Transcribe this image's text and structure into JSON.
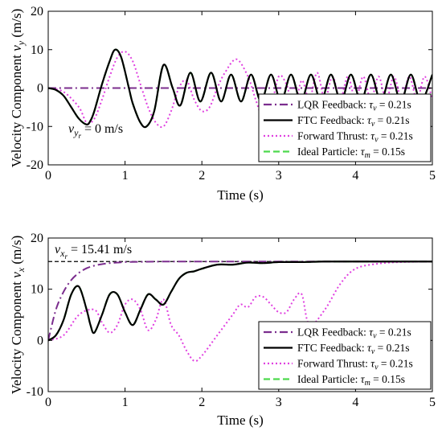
{
  "chart_data": [
    {
      "type": "line",
      "ylabel": "Velocity Component ",
      "ylabel_sym": "v",
      "ylabel_sub": "y",
      "ylabel_unit": " (m/s)",
      "xlabel": "Time (s)",
      "xlim": [
        0,
        5
      ],
      "ylim": [
        -20,
        20
      ],
      "xticks": [
        "0",
        "1",
        "2",
        "3",
        "4",
        "5"
      ],
      "yticks": [
        "20",
        "10",
        "0",
        "-10",
        "-20"
      ],
      "grid": false,
      "legend_position": "bottom-right",
      "annotation": {
        "main": "v",
        "sub": "y",
        "subsub": "r",
        "text": " = 0 m/s"
      },
      "series": [
        {
          "name": "LQR Feedback: ",
          "tau": "τ",
          "tau_sub": "v",
          "tau_val": " = 0.21s",
          "color": "#7b2d8e",
          "style": "dashdot",
          "x": [
            0,
            5
          ],
          "y": [
            0,
            0
          ]
        },
        {
          "name": "FTC Feedback: ",
          "tau": "τ",
          "tau_sub": "v",
          "tau_val": " = 0.21s",
          "color": "#000000",
          "style": "solid",
          "x": [
            0,
            0.1,
            0.2,
            0.3,
            0.4,
            0.5,
            0.55,
            0.6,
            0.7,
            0.8,
            0.87,
            0.95,
            1.05,
            1.1,
            1.2,
            1.28,
            1.38,
            1.5,
            1.62,
            1.72,
            1.85,
            1.98,
            2.12,
            2.25,
            2.38,
            2.51,
            2.64,
            2.77,
            2.9,
            3.03,
            3.16,
            3.29,
            3.42,
            3.55,
            3.68,
            3.81,
            3.94,
            4.07,
            4.2,
            4.33,
            4.46,
            4.59,
            4.72,
            4.85,
            5.0
          ],
          "y": [
            0,
            -0.5,
            -2,
            -5,
            -8,
            -9.5,
            -8.5,
            -6,
            1,
            7,
            10,
            8,
            0,
            -4,
            -9,
            -10,
            -6,
            6,
            0,
            -4.5,
            4,
            -3.5,
            4,
            -3.5,
            3.5,
            -3.5,
            3.5,
            -3.5,
            3.5,
            -3.5,
            3.5,
            -3.5,
            3.5,
            -3.5,
            3.5,
            -3.5,
            3.5,
            -3.5,
            3.5,
            -3.5,
            3.5,
            -3.5,
            3.5,
            -3.5,
            3.5
          ]
        },
        {
          "name": "Forward Thrust: ",
          "tau": "τ",
          "tau_sub": "v",
          "tau_val": " = 0.21s",
          "color": "#e040e0",
          "style": "dotted",
          "x": [
            0,
            0.2,
            0.4,
            0.5,
            0.6,
            0.7,
            0.8,
            0.9,
            1.0,
            1.1,
            1.2,
            1.3,
            1.4,
            1.5,
            1.6,
            1.7,
            1.8,
            1.9,
            2.0,
            2.1,
            2.2,
            2.3,
            2.45,
            2.6,
            2.7,
            2.8,
            2.9,
            3.0,
            3.1,
            3.2,
            3.3,
            3.4,
            3.5,
            3.6,
            3.7,
            3.8,
            3.9,
            4.0,
            4.1,
            4.2,
            4.3,
            4.4,
            4.5,
            4.6,
            4.7,
            4.8,
            4.9,
            5.0
          ],
          "y": [
            0,
            -1,
            -5,
            -9,
            -8,
            -3,
            3,
            8,
            9.5,
            7,
            1,
            -5,
            -9,
            -10,
            -6,
            0,
            2,
            -3,
            -6,
            -5,
            0,
            4,
            7.5,
            3,
            -3,
            -8,
            -5,
            3,
            1,
            -5,
            2,
            -3,
            4,
            -3,
            3,
            -3,
            3,
            -3,
            3,
            -3,
            3,
            -3,
            3,
            -3,
            3,
            -3,
            3,
            -3
          ]
        },
        {
          "name": "Ideal Particle: ",
          "tau": "τ",
          "tau_sub": "m",
          "tau_val": " = 0.15s",
          "color": "#4dd94d",
          "style": "dashed",
          "x": [
            0,
            0.1,
            0.2,
            0.3,
            0.4,
            0.5,
            0.55,
            0.6,
            0.7,
            0.8,
            0.87,
            0.95,
            1.05,
            1.1,
            1.2,
            1.28,
            1.38,
            1.5,
            1.62,
            1.72,
            1.85,
            1.98,
            2.12,
            2.25,
            2.38,
            2.51,
            2.64,
            2.77,
            2.9,
            3.03,
            3.16,
            3.29,
            3.42,
            3.55,
            3.68,
            3.81,
            3.94,
            4.07,
            4.2,
            4.33,
            4.46,
            4.59,
            4.72,
            4.85,
            5.0
          ],
          "y": [
            0,
            -0.5,
            -2,
            -5,
            -8,
            -9.5,
            -8.5,
            -6,
            1,
            7,
            10,
            8,
            0,
            -4,
            -9,
            -10,
            -6,
            6,
            0,
            -4.5,
            4,
            -3.5,
            4,
            -3.5,
            3.5,
            -3.5,
            3.5,
            -3.5,
            3.5,
            -3.5,
            3.5,
            -3.5,
            3.5,
            -3.5,
            3.5,
            -3.5,
            3.5,
            -3.5,
            3.5,
            -3.5,
            3.5,
            -3.5,
            3.5,
            -3.5,
            3.5
          ]
        }
      ]
    },
    {
      "type": "line",
      "ylabel": "Velocity Component ",
      "ylabel_sym": "v",
      "ylabel_sub": "x",
      "ylabel_unit": " (m/s)",
      "xlabel": "Time (s)",
      "xlim": [
        0,
        5
      ],
      "ylim": [
        -10,
        20
      ],
      "xticks": [
        "0",
        "1",
        "2",
        "3",
        "4",
        "5"
      ],
      "yticks": [
        "20",
        "10",
        "0",
        "-10"
      ],
      "grid": false,
      "legend_position": "bottom-right",
      "annotation": {
        "main": "v",
        "sub": "x",
        "subsub": "r",
        "text": " = 15.41 m/s"
      },
      "reference": {
        "value": 15.41,
        "color": "#000000",
        "style": "dashed"
      },
      "series": [
        {
          "name": "LQR Feedback: ",
          "tau": "τ",
          "tau_sub": "v",
          "tau_val": " = 0.21s",
          "color": "#7b2d8e",
          "style": "dashdot",
          "x": [
            0,
            0.1,
            0.2,
            0.3,
            0.4,
            0.5,
            0.6,
            0.7,
            0.8,
            0.9,
            1.0,
            1.2,
            1.5,
            2.0,
            3.0,
            5.0
          ],
          "y": [
            0,
            6,
            9.5,
            11.8,
            13.2,
            14.1,
            14.6,
            14.9,
            15.1,
            15.2,
            15.3,
            15.35,
            15.4,
            15.41,
            15.41,
            15.41
          ]
        },
        {
          "name": "FTC Feedback: ",
          "tau": "τ",
          "tau_sub": "v",
          "tau_val": " = 0.21s",
          "color": "#000000",
          "style": "solid",
          "x": [
            0,
            0.1,
            0.2,
            0.3,
            0.4,
            0.5,
            0.55,
            0.6,
            0.7,
            0.8,
            0.9,
            1.0,
            1.1,
            1.2,
            1.3,
            1.4,
            1.5,
            1.6,
            1.7,
            1.8,
            1.9,
            2.0,
            2.2,
            2.4,
            2.6,
            2.8,
            3.0,
            3.3,
            3.6,
            4.0,
            4.5,
            5.0
          ],
          "y": [
            0,
            1,
            4,
            9,
            10.5,
            6,
            3,
            1.5,
            5,
            9,
            9,
            5.5,
            3,
            6,
            9,
            8,
            7,
            9.5,
            12,
            13.2,
            13.5,
            14,
            14.8,
            14.8,
            15.2,
            15.1,
            15.3,
            15.3,
            15.4,
            15.4,
            15.4,
            15.4
          ]
        },
        {
          "name": "Forward Thrust: ",
          "tau": "τ",
          "tau_sub": "v",
          "tau_val": " = 0.21s",
          "color": "#e040e0",
          "style": "dotted",
          "x": [
            0,
            0.2,
            0.4,
            0.6,
            0.7,
            0.8,
            0.9,
            1.0,
            1.1,
            1.2,
            1.3,
            1.4,
            1.5,
            1.6,
            1.7,
            1.8,
            1.9,
            2.0,
            2.2,
            2.4,
            2.5,
            2.6,
            2.7,
            2.8,
            2.9,
            3.0,
            3.1,
            3.2,
            3.3,
            3.4,
            3.6,
            3.8,
            4.0,
            4.3,
            4.6,
            5.0
          ],
          "y": [
            0,
            1,
            5,
            6,
            3.5,
            1.5,
            3,
            7,
            8,
            6,
            2,
            4,
            8,
            3,
            1,
            -2,
            -4,
            -3,
            1,
            5,
            7,
            6.5,
            8.5,
            8.5,
            7,
            5.5,
            5.5,
            8,
            9,
            3,
            6,
            11,
            14,
            15,
            15.3,
            15.4
          ]
        },
        {
          "name": "Ideal Particle: ",
          "tau": "τ",
          "tau_sub": "m",
          "tau_val": " = 0.15s",
          "color": "#4dd94d",
          "style": "dashed",
          "x": [
            0,
            0.1,
            0.2,
            0.3,
            0.4,
            0.5,
            0.55,
            0.6,
            0.7,
            0.8,
            0.9,
            1.0,
            1.1,
            1.2,
            1.3,
            1.4,
            1.5,
            1.6,
            1.7,
            1.8,
            1.9,
            2.0,
            2.2,
            2.4,
            2.6,
            2.8,
            3.0,
            3.3,
            3.6,
            4.0,
            4.5,
            5.0
          ],
          "y": [
            0,
            1,
            4,
            9,
            10.5,
            6,
            3,
            1.5,
            5,
            9,
            9,
            5.5,
            3,
            6,
            9,
            8,
            7,
            9.5,
            12,
            13.2,
            13.5,
            14,
            14.8,
            14.8,
            15.2,
            15.1,
            15.3,
            15.3,
            15.4,
            15.4,
            15.4,
            15.4
          ]
        }
      ]
    }
  ]
}
